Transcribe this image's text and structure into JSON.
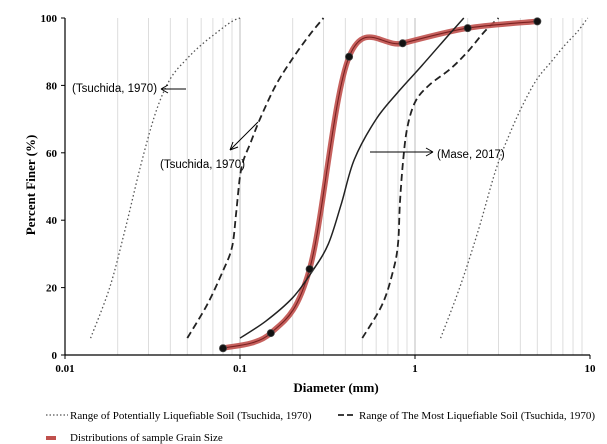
{
  "chart_data": {
    "type": "line",
    "x_scale": "log",
    "xlim": [
      0.01,
      10
    ],
    "ylim": [
      0,
      100
    ],
    "xlabel": "Diameter (mm)",
    "ylabel": "Percent Finer (%)",
    "x_ticks": [
      "0.01",
      "0.1",
      "1",
      "10"
    ],
    "y_ticks": [
      "0",
      "20",
      "40",
      "60",
      "80",
      "100"
    ],
    "grid": "vertical log minor lines",
    "legend_position": "bottom",
    "series": [
      {
        "name": "Range of Potentially Liquefiable Soil (Tsuchida, 1970)",
        "style": "dotted",
        "color": "#555555",
        "curves": [
          {
            "x": [
              0.014,
              0.018,
              0.022,
              0.027,
              0.033,
              0.04,
              0.05,
              0.06,
              0.075,
              0.09,
              0.1
            ],
            "y": [
              5,
              20,
              37,
              56,
              72,
              82,
              88,
              92,
              96,
              99,
              100
            ]
          },
          {
            "x": [
              1.4,
              1.8,
              2.3,
              2.9,
              3.5,
              4.2,
              5.0,
              6.0,
              7.2,
              8.5,
              9.7
            ],
            "y": [
              5,
              20,
              37,
              55,
              66,
              75,
              82,
              87,
              92,
              96,
              100
            ]
          }
        ]
      },
      {
        "name": "Range of The Most Liquefiable Soil (Tsuchida, 1970)",
        "style": "dashed",
        "color": "#222222",
        "curves": [
          {
            "x": [
              0.05,
              0.065,
              0.08,
              0.09,
              0.095,
              0.1,
              0.105,
              0.115,
              0.13,
              0.16,
              0.2,
              0.25,
              0.3
            ],
            "y": [
              5,
              15,
              25,
              32,
              42,
              53,
              58,
              63,
              70,
              80,
              88,
              95,
              100
            ]
          },
          {
            "x": [
              0.5,
              0.65,
              0.75,
              0.8,
              0.82,
              0.85,
              0.9,
              1.0,
              1.2,
              1.6,
              2.0,
              2.5,
              3.0
            ],
            "y": [
              5,
              15,
              25,
              33,
              45,
              56,
              67,
              75,
              80,
              85,
              90,
              96,
              100
            ]
          }
        ]
      },
      {
        "name": "Distributions of sample Grain Size",
        "style": "solid",
        "color": "#c0504d",
        "x": [
          0.08,
          0.15,
          0.25,
          0.42,
          0.85,
          2.0,
          5.0
        ],
        "y": [
          2,
          6.5,
          25.5,
          88.5,
          92.5,
          97,
          99
        ]
      },
      {
        "name": "Mase, 2017",
        "style": "solid",
        "color": "#222222",
        "legend": false,
        "x": [
          0.1,
          0.14,
          0.2,
          0.26,
          0.32,
          0.38,
          0.45,
          0.6,
          0.8,
          1.1,
          1.5,
          1.9
        ],
        "y": [
          5,
          10,
          17,
          25,
          33,
          45,
          58,
          70,
          78,
          86,
          94,
          100
        ]
      }
    ],
    "annotations": [
      {
        "text": "(Tsuchida, 1970)"
      },
      {
        "text": "(Tsuchida, 1970)"
      },
      {
        "text": "(Mase, 2017)"
      }
    ],
    "legend": [
      {
        "label": "Range of Potentially Liquefiable Soil (Tsuchida, 1970)",
        "style": "dotted"
      },
      {
        "label": "Range of The Most Liquefiable Soil (Tsuchida, 1970)",
        "style": "dashed"
      },
      {
        "label": "Distributions of sample Grain Size",
        "style": "solid"
      }
    ]
  }
}
